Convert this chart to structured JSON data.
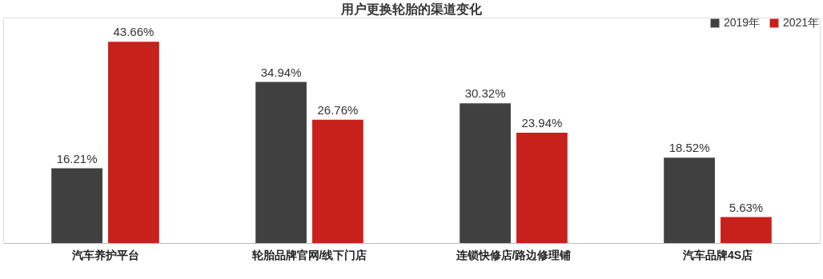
{
  "chart_data": {
    "type": "bar",
    "title": "用户更换轮胎的渠道变化",
    "categories": [
      "汽车养护平台",
      "轮胎品牌官网/线下门店",
      "连锁快修店/路边修理铺",
      "汽车品牌4S店"
    ],
    "series": [
      {
        "name": "2019年",
        "color": "#404040",
        "values": [
          16.21,
          34.94,
          30.32,
          18.52
        ],
        "value_labels": [
          "16.21%",
          "34.94%",
          "30.32%",
          "18.52%"
        ]
      },
      {
        "name": "2021年",
        "color": "#c8201a",
        "values": [
          43.66,
          26.76,
          23.94,
          5.63
        ],
        "value_labels": [
          "43.66%",
          "26.76%",
          "23.94%",
          "5.63%"
        ]
      }
    ],
    "legend": "top right",
    "grid": false
  }
}
